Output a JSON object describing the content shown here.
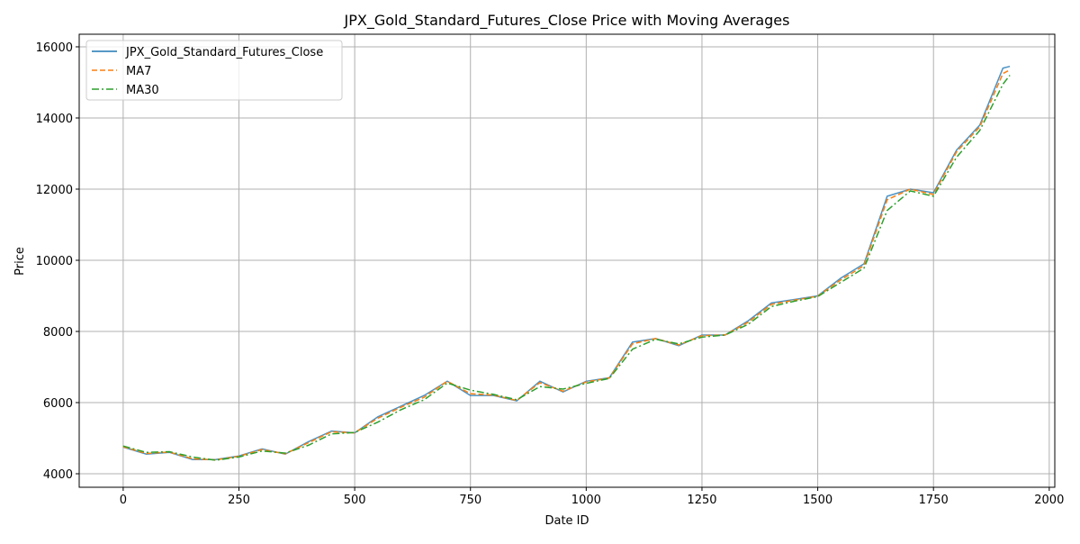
{
  "chart_data": {
    "type": "line",
    "title": "JPX_Gold_Standard_Futures_Close Price with Moving Averages",
    "x_label": "Date ID",
    "y_label": "Price",
    "x": [
      0,
      50,
      100,
      150,
      200,
      250,
      300,
      350,
      400,
      450,
      500,
      550,
      600,
      650,
      700,
      750,
      800,
      850,
      900,
      950,
      1000,
      1050,
      1100,
      1150,
      1200,
      1250,
      1300,
      1350,
      1400,
      1450,
      1500,
      1550,
      1600,
      1650,
      1700,
      1750,
      1800,
      1850,
      1900,
      1915
    ],
    "series": [
      {
        "name": "JPX_Gold_Standard_Futures_Close",
        "color": "#1f77b4",
        "linestyle": "solid",
        "values": [
          4750,
          4550,
          4600,
          4400,
          4400,
          4500,
          4700,
          4550,
          4900,
          5200,
          5150,
          5600,
          5900,
          6200,
          6600,
          6200,
          6200,
          6050,
          6600,
          6300,
          6600,
          6700,
          7700,
          7800,
          7600,
          7900,
          7900,
          8300,
          8800,
          8900,
          9000,
          9500,
          9900,
          11800,
          12000,
          11900,
          13100,
          13800,
          15400,
          15450
        ]
      },
      {
        "name": "MA7",
        "color": "#ff7f0e",
        "linestyle": "dashed",
        "values": [
          4760,
          4570,
          4610,
          4420,
          4390,
          4490,
          4680,
          4560,
          4870,
          5180,
          5150,
          5560,
          5870,
          6150,
          6600,
          6250,
          6210,
          6060,
          6560,
          6320,
          6580,
          6690,
          7650,
          7800,
          7620,
          7880,
          7900,
          8260,
          8760,
          8880,
          8990,
          9450,
          9850,
          11700,
          12000,
          11850,
          13050,
          13750,
          15250,
          15350
        ]
      },
      {
        "name": "MA30",
        "color": "#2ca02c",
        "linestyle": "dashdot",
        "values": [
          4780,
          4600,
          4620,
          4470,
          4380,
          4470,
          4640,
          4580,
          4800,
          5120,
          5160,
          5450,
          5800,
          6080,
          6550,
          6350,
          6230,
          6080,
          6450,
          6380,
          6540,
          6680,
          7500,
          7780,
          7650,
          7840,
          7900,
          8200,
          8700,
          8850,
          8980,
          9380,
          9780,
          11400,
          11950,
          11800,
          12900,
          13650,
          14950,
          15200
        ]
      }
    ],
    "xlim": [
      -95,
      2012
    ],
    "xticks": [
      0,
      250,
      500,
      750,
      1000,
      1250,
      1500,
      1750,
      2000
    ],
    "ylim": [
      3620,
      16354
    ],
    "yticks": [
      4000,
      6000,
      8000,
      10000,
      12000,
      14000,
      16000
    ],
    "grid": true,
    "legend": "upper-left"
  }
}
